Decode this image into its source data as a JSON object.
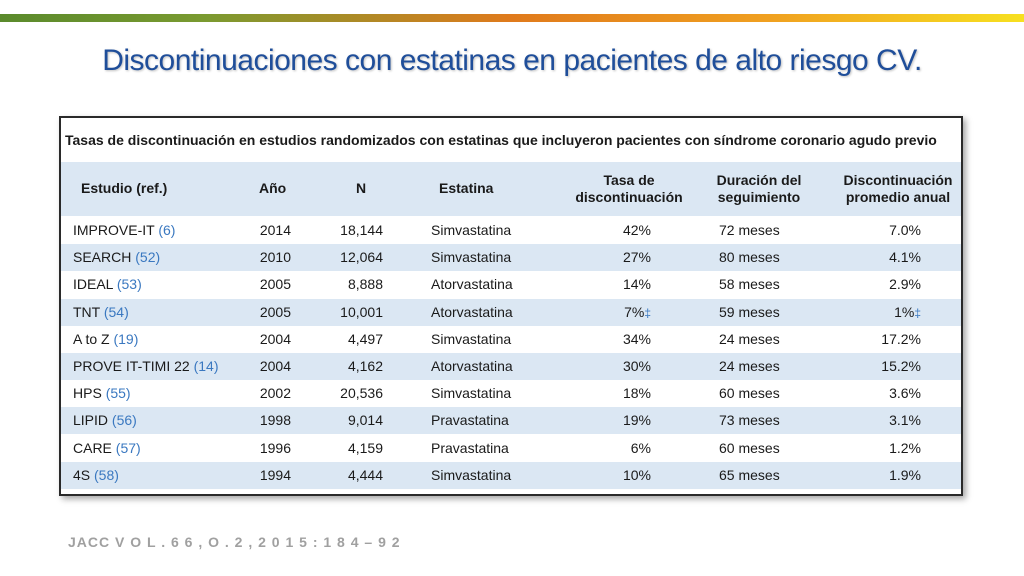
{
  "slide": {
    "title": "Discontinuaciones con estatinas en pacientes de alto riesgo CV.",
    "citation": "JACC V O L . 6 6 , O . 2 , 2 0 1 5 : 1 8 4 – 9 2"
  },
  "table": {
    "caption": "Tasas de discontinuación en estudios randomizados con estatinas que incluyeron pacientes con síndrome coronario agudo previo",
    "headers": {
      "study": "Estudio (ref.)",
      "year": "Año",
      "n": "N",
      "statin": "Estatina",
      "rate_line1": "Tasa de",
      "rate_line2": "discontinuación",
      "duration_line1": "Duración del",
      "duration_line2": "seguimiento",
      "annual_line1": "Discontinuación",
      "annual_line2": "promedio anual"
    },
    "rows": [
      {
        "study": "IMPROVE-IT",
        "ref": "(6)",
        "year": "2014",
        "n": "18,144",
        "statin": "Simvastatina",
        "rate": "42%",
        "rate_mark": "",
        "months": "72",
        "unit": "meses",
        "annual": "7.0%",
        "annual_mark": ""
      },
      {
        "study": "SEARCH",
        "ref": "(52)",
        "year": "2010",
        "n": "12,064",
        "statin": "Simvastatina",
        "rate": "27%",
        "rate_mark": "",
        "months": "80",
        "unit": "meses",
        "annual": "4.1%",
        "annual_mark": ""
      },
      {
        "study": "IDEAL",
        "ref": "(53)",
        "year": "2005",
        "n": "8,888",
        "statin": "Atorvastatina",
        "rate": "14%",
        "rate_mark": "",
        "months": "58",
        "unit": "meses",
        "annual": "2.9%",
        "annual_mark": ""
      },
      {
        "study": "TNT",
        "ref": "(54)",
        "year": "2005",
        "n": "10,001",
        "statin": "Atorvastatina",
        "rate": "7%",
        "rate_mark": "‡",
        "months": "59",
        "unit": "meses",
        "annual": "1%",
        "annual_mark": "‡"
      },
      {
        "study": "A to Z",
        "ref": "(19)",
        "year": "2004",
        "n": "4,497",
        "statin": "Simvastatina",
        "rate": "34%",
        "rate_mark": "",
        "months": "24",
        "unit": "meses",
        "annual": "17.2%",
        "annual_mark": ""
      },
      {
        "study": "PROVE IT-TIMI 22",
        "ref": "(14)",
        "year": "2004",
        "n": "4,162",
        "statin": "Atorvastatina",
        "rate": "30%",
        "rate_mark": "",
        "months": "24",
        "unit": "meses",
        "annual": "15.2%",
        "annual_mark": ""
      },
      {
        "study": "HPS",
        "ref": "(55)",
        "year": "2002",
        "n": "20,536",
        "statin": "Simvastatina",
        "rate": "18%",
        "rate_mark": "",
        "months": "60",
        "unit": "meses",
        "annual": "3.6%",
        "annual_mark": ""
      },
      {
        "study": "LIPID",
        "ref": "(56)",
        "year": "1998",
        "n": "9,014",
        "statin": "Pravastatina",
        "rate": "19%",
        "rate_mark": "",
        "months": "73",
        "unit": "meses",
        "annual": "3.1%",
        "annual_mark": ""
      },
      {
        "study": "CARE",
        "ref": "(57)",
        "year": "1996",
        "n": "4,159",
        "statin": "Pravastatina",
        "rate": "6%",
        "rate_mark": "",
        "months": "60",
        "unit": "meses",
        "annual": "1.2%",
        "annual_mark": ""
      },
      {
        "study": "4S",
        "ref": "(58)",
        "year": "1994",
        "n": "4,444",
        "statin": "Simvastatina",
        "rate": "10%",
        "rate_mark": "",
        "months": "65",
        "unit": "meses",
        "annual": "1.9%",
        "annual_mark": ""
      }
    ]
  },
  "colors": {
    "title": "#1f4e9a",
    "band": "#dbe7f3",
    "ref_link": "#3a78c0",
    "citation": "#a0a0a0"
  }
}
